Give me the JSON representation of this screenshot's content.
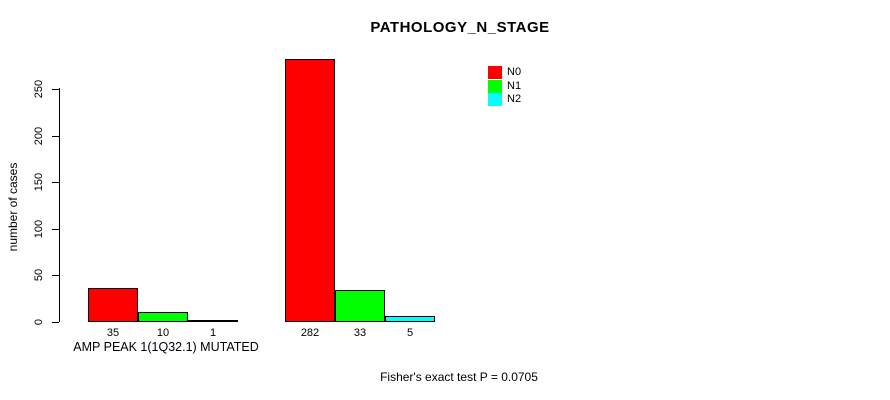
{
  "chart_data": {
    "type": "bar",
    "title": "PATHOLOGY_N_STAGE",
    "ylabel": "number of cases",
    "xlabel": "",
    "ylim": [
      0,
      250
    ],
    "yticks": [
      0,
      50,
      100,
      150,
      200,
      250
    ],
    "grid": false,
    "legend_position": "top-right",
    "categories": [
      "AMP PEAK  1(1Q32.1) MUTATED",
      ""
    ],
    "series": [
      {
        "name": "N0",
        "color": "#ff0000",
        "values": [
          35,
          282
        ]
      },
      {
        "name": "N1",
        "color": "#00ff00",
        "values": [
          10,
          33
        ]
      },
      {
        "name": "N2",
        "color": "#00ffff",
        "values": [
          1,
          5
        ]
      }
    ],
    "annotation": "Fisher's exact test P = 0.0705"
  }
}
